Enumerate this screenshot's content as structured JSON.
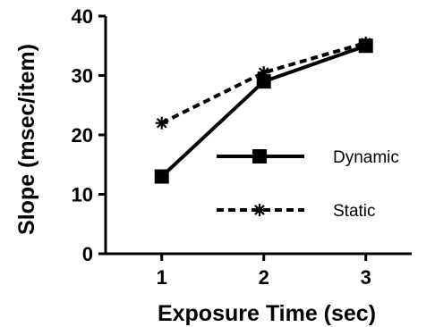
{
  "chart_data": {
    "type": "line",
    "title": "",
    "xlabel": "Exposure Time (sec)",
    "ylabel": "Slope (msec/item)",
    "x": [
      1,
      2,
      3
    ],
    "xlim": [
      0.45,
      3.45
    ],
    "ylim": [
      0,
      40
    ],
    "xticks": [
      1,
      2,
      3
    ],
    "yticks": [
      0,
      10,
      20,
      30,
      40
    ],
    "grid": false,
    "legend_position": "center-right",
    "series": [
      {
        "name": "Dynamic",
        "values": [
          13,
          29,
          35
        ],
        "marker": "square",
        "line_style": "solid",
        "color": "#000000"
      },
      {
        "name": "Static",
        "values": [
          22,
          30.5,
          35.5
        ],
        "marker": "asterisk",
        "line_style": "dashed",
        "color": "#000000"
      }
    ]
  }
}
